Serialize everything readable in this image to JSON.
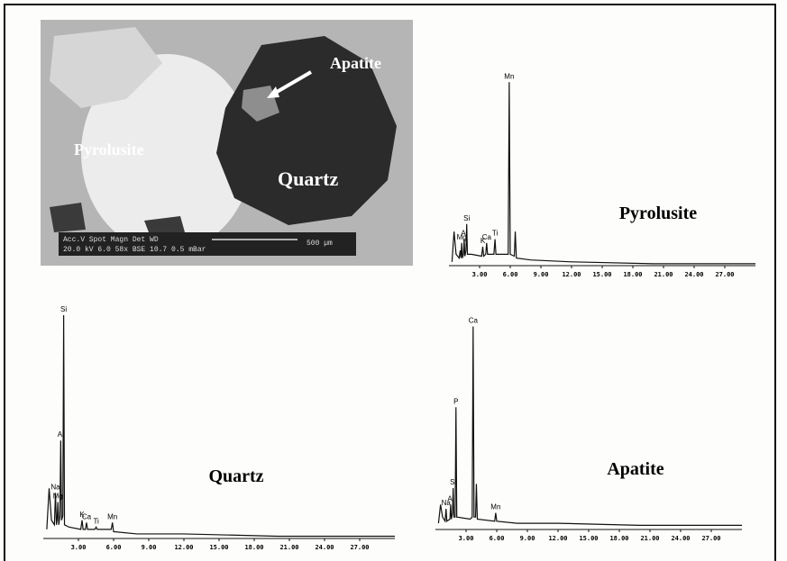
{
  "image": {
    "labels": {
      "apatite": "Apatite",
      "pyrolusite": "Pyrolusite",
      "quartz": "Quartz"
    },
    "scale_bar": {
      "header": "Acc.V  Spot Magn   Det  WD",
      "values": "20.0 kV 6.0   58x   BSE  10.7  0.5 mBar",
      "length": "500 µm"
    }
  },
  "chart_data": [
    {
      "type": "line",
      "title": "Pyrolusite",
      "xlim": [
        0,
        30
      ],
      "ylim": [
        0,
        100
      ],
      "xticks": [
        {
          "value": 3,
          "label": "3.00"
        },
        {
          "value": 6,
          "label": "6.00"
        },
        {
          "value": 9,
          "label": "9.00"
        },
        {
          "value": 12,
          "label": "12.00"
        },
        {
          "value": 15,
          "label": "15.00"
        },
        {
          "value": 18,
          "label": "18.00"
        },
        {
          "value": 21,
          "label": "21.00"
        },
        {
          "value": 24,
          "label": "24.00"
        },
        {
          "value": 27,
          "label": "27.00"
        }
      ],
      "x": [
        0.3,
        0.5,
        0.7,
        1.0,
        1.1,
        1.18,
        1.25,
        1.32,
        1.42,
        1.49,
        1.56,
        1.67,
        1.74,
        1.81,
        2.2,
        3.2,
        3.31,
        3.4,
        3.6,
        3.69,
        3.78,
        4.4,
        4.51,
        4.6,
        5.8,
        5.9,
        6.0,
        6.4,
        6.49,
        6.6,
        8,
        12,
        20,
        30
      ],
      "values": [
        2,
        18,
        6,
        4,
        8,
        4,
        12,
        4,
        6,
        14,
        5,
        8,
        22,
        6,
        6,
        5,
        10,
        5,
        6,
        12,
        6,
        6,
        14,
        6,
        6,
        97,
        6,
        5,
        18,
        4,
        3,
        2,
        1,
        1
      ],
      "peaks": [
        {
          "label": "Mg",
          "x": 1.25
        },
        {
          "label": "Al",
          "x": 1.49
        },
        {
          "label": "Si",
          "x": 1.74
        },
        {
          "label": "K",
          "x": 3.31
        },
        {
          "label": "Ca",
          "x": 3.69
        },
        {
          "label": "Ti",
          "x": 4.51
        },
        {
          "label": "Mn",
          "x": 5.9
        }
      ]
    },
    {
      "type": "line",
      "title": "Quartz",
      "xlim": [
        0,
        30
      ],
      "ylim": [
        0,
        100
      ],
      "xticks": [
        {
          "value": 3,
          "label": "3.00"
        },
        {
          "value": 6,
          "label": "6.00"
        },
        {
          "value": 9,
          "label": "9.00"
        },
        {
          "value": 12,
          "label": "12.00"
        },
        {
          "value": 15,
          "label": "15.00"
        },
        {
          "value": 18,
          "label": "18.00"
        },
        {
          "value": 21,
          "label": "21.00"
        },
        {
          "value": 24,
          "label": "24.00"
        },
        {
          "value": 27,
          "label": "27.00"
        }
      ],
      "x": [
        0.3,
        0.5,
        0.7,
        0.95,
        1.04,
        1.12,
        1.18,
        1.25,
        1.32,
        1.42,
        1.49,
        1.56,
        1.67,
        1.74,
        1.81,
        2.2,
        3.2,
        3.31,
        3.4,
        3.6,
        3.69,
        3.78,
        4.4,
        4.51,
        4.6,
        5.8,
        5.9,
        6.0,
        8,
        12,
        20,
        30
      ],
      "values": [
        4,
        22,
        8,
        6,
        20,
        6,
        8,
        16,
        6,
        10,
        43,
        8,
        10,
        98,
        6,
        5,
        4,
        8,
        4,
        4,
        7,
        4,
        4,
        5,
        4,
        4,
        7,
        3,
        2,
        2,
        1,
        1
      ],
      "peaks": [
        {
          "label": "Na",
          "x": 1.04
        },
        {
          "label": "Mg",
          "x": 1.25
        },
        {
          "label": "Al",
          "x": 1.49
        },
        {
          "label": "Si",
          "x": 1.74
        },
        {
          "label": "K",
          "x": 3.31
        },
        {
          "label": "Ca",
          "x": 3.69
        },
        {
          "label": "Ti",
          "x": 4.51
        },
        {
          "label": "Mn",
          "x": 5.9
        }
      ]
    },
    {
      "type": "line",
      "title": "Apatite",
      "xlim": [
        0,
        30
      ],
      "ylim": [
        0,
        100
      ],
      "xticks": [
        {
          "value": 3,
          "label": "3.00"
        },
        {
          "value": 6,
          "label": "6.00"
        },
        {
          "value": 9,
          "label": "9.00"
        },
        {
          "value": 12,
          "label": "12.00"
        },
        {
          "value": 15,
          "label": "15.00"
        },
        {
          "value": 18,
          "label": "18.00"
        },
        {
          "value": 21,
          "label": "21.00"
        },
        {
          "value": 24,
          "label": "24.00"
        },
        {
          "value": 27,
          "label": "27.00"
        }
      ],
      "x": [
        0.3,
        0.5,
        0.7,
        0.95,
        1.04,
        1.12,
        1.42,
        1.49,
        1.56,
        1.67,
        1.74,
        1.81,
        1.93,
        2.01,
        2.09,
        3.4,
        3.6,
        3.69,
        3.78,
        3.93,
        4.01,
        4.1,
        5.8,
        5.9,
        6.0,
        8,
        12,
        20,
        30
      ],
      "values": [
        3,
        12,
        6,
        4,
        10,
        4,
        5,
        12,
        5,
        8,
        20,
        6,
        6,
        59,
        6,
        5,
        6,
        98,
        6,
        6,
        22,
        5,
        4,
        8,
        4,
        3,
        3,
        2,
        2
      ],
      "peaks": [
        {
          "label": "Na",
          "x": 1.04
        },
        {
          "label": "Al",
          "x": 1.49
        },
        {
          "label": "Si",
          "x": 1.74
        },
        {
          "label": "P",
          "x": 2.01
        },
        {
          "label": "Ca",
          "x": 3.69
        },
        {
          "label": "Mn",
          "x": 5.9
        }
      ]
    }
  ]
}
